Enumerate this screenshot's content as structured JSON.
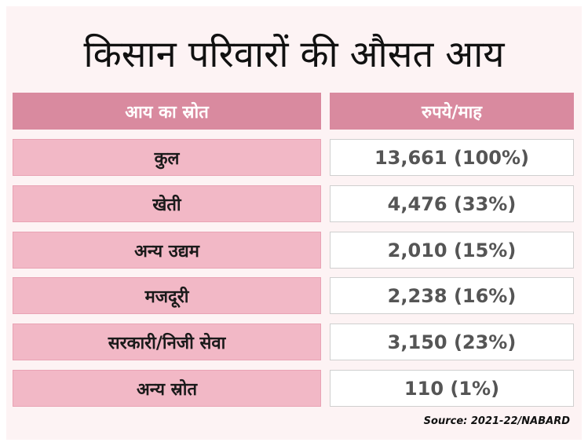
{
  "chart_data": {
    "type": "table",
    "title": "किसान परिवारों की औसत आय",
    "columns": [
      "आय का स्रोत",
      "रुपये/माह"
    ],
    "rows": [
      {
        "label": "कुल",
        "value": 13661,
        "percent": 100,
        "display": "13,661 (100%)"
      },
      {
        "label": "खेती",
        "value": 4476,
        "percent": 33,
        "display": "4,476 (33%)"
      },
      {
        "label": "अन्य उद्यम",
        "value": 2010,
        "percent": 15,
        "display": "2,010 (15%)"
      },
      {
        "label": "मजदूरी",
        "value": 2238,
        "percent": 16,
        "display": "2,238 (16%)"
      },
      {
        "label": "सरकारी/निजी सेवा",
        "value": 3150,
        "percent": 23,
        "display": "3,150 (23%)"
      },
      {
        "label": "अन्य स्रोत",
        "value": 110,
        "percent": 1,
        "display": "110 (1%)"
      }
    ],
    "source": "Source: 2021-22/NABARD"
  },
  "colors": {
    "header_bg": "#d98a9f",
    "label_bg": "#f2b8c6",
    "panel_bg": "#fdf3f4"
  }
}
